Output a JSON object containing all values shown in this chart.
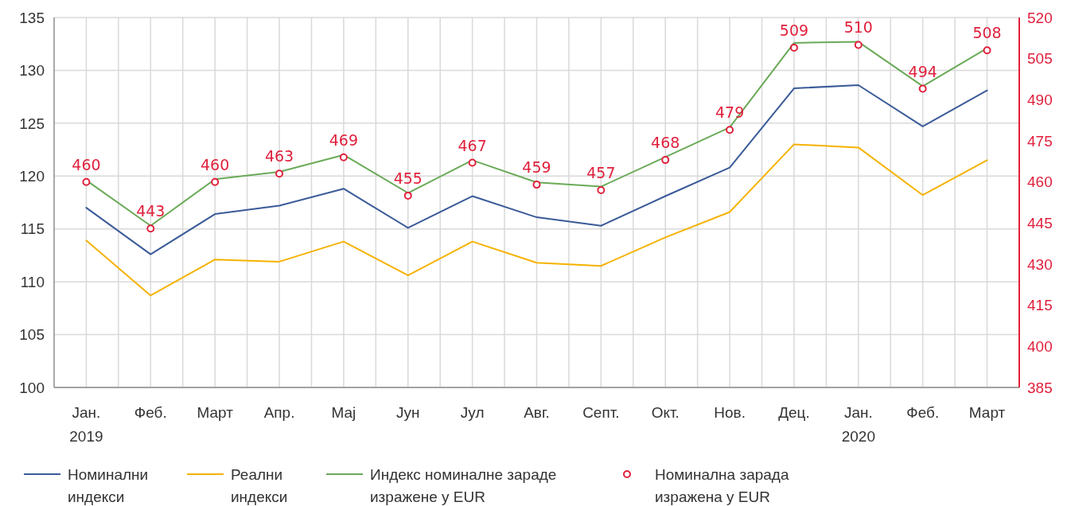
{
  "chart_data": {
    "type": "line",
    "categories": [
      "Јан.\n2019",
      "Феб.",
      "Март",
      "Апр.",
      "Мај",
      "Јун",
      "Јул",
      "Авг.",
      "Септ.",
      "Окт.",
      "Нов.",
      "Дец.",
      "Јан.\n2020",
      "Феб.",
      "Март"
    ],
    "series": [
      {
        "name": "Номинални индекси",
        "color": "#3a5a98",
        "values": [
          117.0,
          112.6,
          116.4,
          117.2,
          118.8,
          115.1,
          118.1,
          116.1,
          115.3,
          118.1,
          120.8,
          128.3,
          128.6,
          124.7,
          128.1
        ]
      },
      {
        "name": "Реални индекси",
        "color": "#f5b200",
        "values": [
          113.9,
          108.7,
          112.1,
          111.9,
          113.8,
          110.6,
          113.8,
          111.8,
          111.5,
          114.2,
          116.6,
          123.0,
          122.7,
          118.2,
          121.5
        ]
      },
      {
        "name": "Индекс номиналне зараде изражене у EUR",
        "color": "#6aaa58",
        "values": [
          119.6,
          115.3,
          119.7,
          120.4,
          122.0,
          118.4,
          121.5,
          119.4,
          119.0,
          121.8,
          124.6,
          132.6,
          132.7,
          128.5,
          132.1
        ]
      },
      {
        "name": "Номинална зарада изражена у EUR",
        "type": "scatter",
        "axis": "y2",
        "marker": "circle",
        "data_labels": true,
        "color": "#e0203c",
        "values": [
          460,
          443,
          460,
          463,
          469,
          455,
          467,
          459,
          457,
          468,
          479,
          509,
          510,
          494,
          508
        ]
      }
    ],
    "ylim": [
      100,
      135
    ],
    "yticks": [
      100,
      105,
      110,
      115,
      120,
      125,
      130,
      135
    ],
    "y2lim": [
      385,
      520
    ],
    "y2ticks": [
      385,
      400,
      415,
      430,
      445,
      460,
      475,
      490,
      505,
      520
    ],
    "grid": true,
    "legend": "bottom",
    "marker": "none",
    "line_style": "solid"
  }
}
